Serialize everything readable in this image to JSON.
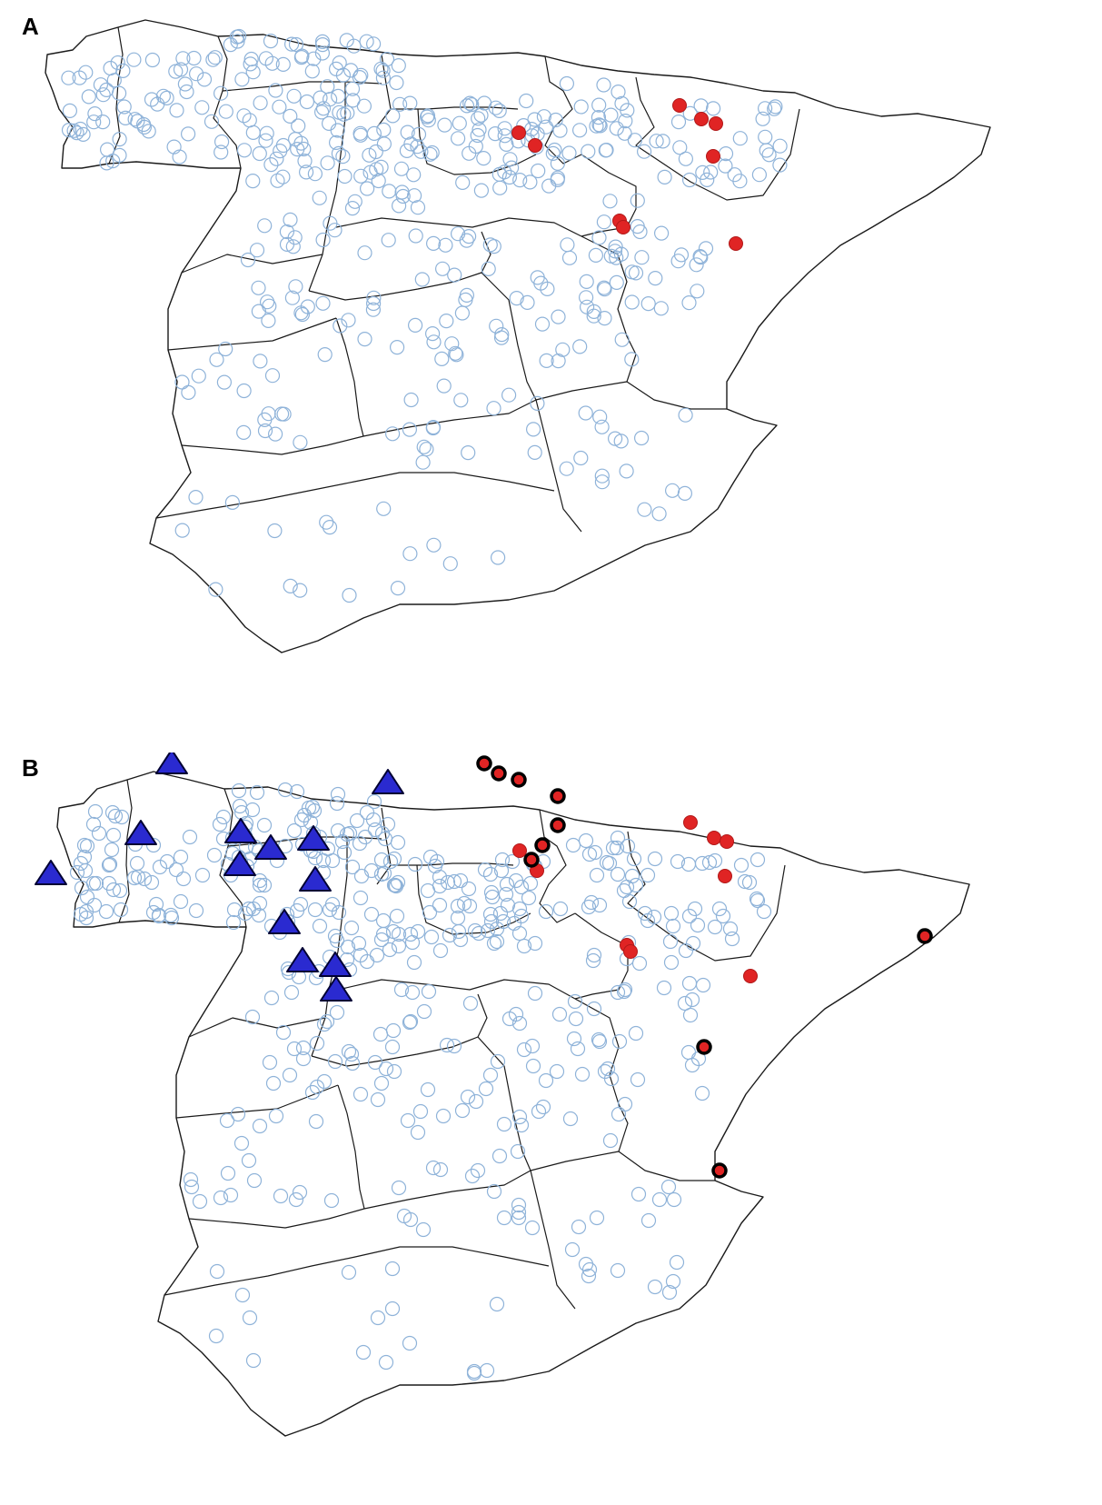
{
  "panels": [
    {
      "label": "A"
    },
    {
      "label": "B"
    }
  ],
  "legend": {},
  "colors": {
    "sample_circle": "#8fb3d9",
    "red_point": "#e02424",
    "red_point_outlined_stroke": "#000000",
    "triangle_fill": "#2a2ad0",
    "triangle_stroke": "#000033",
    "border": "#1a1a1a"
  },
  "symbols": {
    "sample_site": "open-circle",
    "red_site": "filled-red-circle",
    "red_site_outlined": "filled-red-circle-black-outline",
    "triangle_site": "filled-blue-triangle"
  },
  "counts": {
    "panel_a": {
      "red_sites": 11
    },
    "panel_b": {
      "red_sites": 21,
      "triangle_sites": 14
    }
  }
}
